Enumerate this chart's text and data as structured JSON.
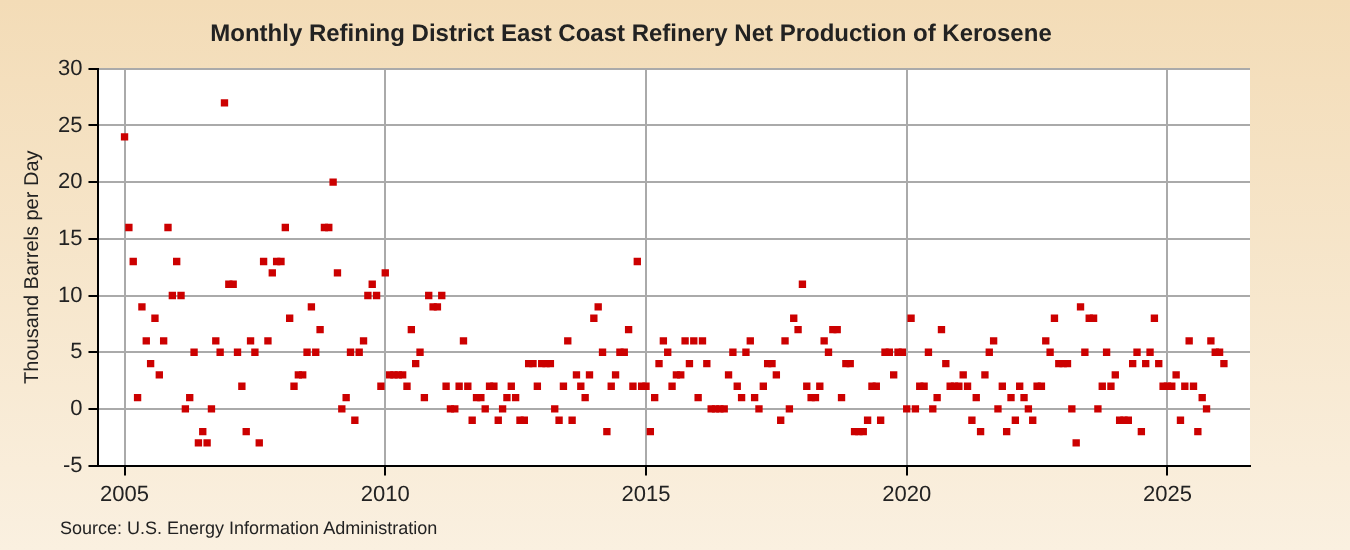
{
  "chart_data": {
    "type": "scatter",
    "title": "Monthly Refining District East Coast Refinery Net Production of Kerosene",
    "ylabel": "Thousand Barrels per Day",
    "annotations": [
      "Source: U.S. Energy Information Administration"
    ],
    "x": [
      "2005-01",
      "2005-02",
      "2005-03",
      "2005-04",
      "2005-05",
      "2005-06",
      "2005-07",
      "2005-08",
      "2005-09",
      "2005-10",
      "2005-11",
      "2005-12",
      "2006-01",
      "2006-02",
      "2006-03",
      "2006-04",
      "2006-05",
      "2006-06",
      "2006-07",
      "2006-08",
      "2006-09",
      "2006-10",
      "2006-11",
      "2006-12",
      "2007-01",
      "2007-02",
      "2007-03",
      "2007-04",
      "2007-05",
      "2007-06",
      "2007-07",
      "2007-08",
      "2007-09",
      "2007-10",
      "2007-11",
      "2007-12",
      "2008-01",
      "2008-02",
      "2008-03",
      "2008-04",
      "2008-05",
      "2008-06",
      "2008-07",
      "2008-08",
      "2008-09",
      "2008-10",
      "2008-11",
      "2008-12",
      "2009-01",
      "2009-02",
      "2009-03",
      "2009-04",
      "2009-05",
      "2009-06",
      "2009-07",
      "2009-08",
      "2009-09",
      "2009-10",
      "2009-11",
      "2009-12",
      "2010-01",
      "2010-02",
      "2010-03",
      "2010-04",
      "2010-05",
      "2010-06",
      "2010-07",
      "2010-08",
      "2010-09",
      "2010-10",
      "2010-11",
      "2010-12",
      "2011-01",
      "2011-02",
      "2011-03",
      "2011-04",
      "2011-05",
      "2011-06",
      "2011-07",
      "2011-08",
      "2011-09",
      "2011-10",
      "2011-11",
      "2011-12",
      "2012-01",
      "2012-02",
      "2012-03",
      "2012-04",
      "2012-05",
      "2012-06",
      "2012-07",
      "2012-08",
      "2012-09",
      "2012-10",
      "2012-11",
      "2012-12",
      "2013-01",
      "2013-02",
      "2013-03",
      "2013-04",
      "2013-05",
      "2013-06",
      "2013-07",
      "2013-08",
      "2013-09",
      "2013-10",
      "2013-11",
      "2013-12",
      "2014-01",
      "2014-02",
      "2014-03",
      "2014-04",
      "2014-05",
      "2014-06",
      "2014-07",
      "2014-08",
      "2014-09",
      "2014-10",
      "2014-11",
      "2014-12",
      "2015-01",
      "2015-02",
      "2015-03",
      "2015-04",
      "2015-05",
      "2015-06",
      "2015-07",
      "2015-08",
      "2015-09",
      "2015-10",
      "2015-11",
      "2015-12",
      "2016-01",
      "2016-02",
      "2016-03",
      "2016-04",
      "2016-05",
      "2016-06",
      "2016-07",
      "2016-08",
      "2016-09",
      "2016-10",
      "2016-11",
      "2016-12",
      "2017-01",
      "2017-02",
      "2017-03",
      "2017-04",
      "2017-05",
      "2017-06",
      "2017-07",
      "2017-08",
      "2017-09",
      "2017-10",
      "2017-11",
      "2017-12",
      "2018-01",
      "2018-02",
      "2018-03",
      "2018-04",
      "2018-05",
      "2018-06",
      "2018-07",
      "2018-08",
      "2018-09",
      "2018-10",
      "2018-11",
      "2018-12",
      "2019-01",
      "2019-02",
      "2019-03",
      "2019-04",
      "2019-05",
      "2019-06",
      "2019-07",
      "2019-08",
      "2019-09",
      "2019-10",
      "2019-11",
      "2019-12",
      "2020-01",
      "2020-02",
      "2020-03",
      "2020-04",
      "2020-05",
      "2020-06",
      "2020-07",
      "2020-08",
      "2020-09",
      "2020-10",
      "2020-11",
      "2020-12",
      "2021-01",
      "2021-02",
      "2021-03",
      "2021-04",
      "2021-05",
      "2021-06",
      "2021-07",
      "2021-08",
      "2021-09",
      "2021-10",
      "2021-11",
      "2021-12",
      "2022-01",
      "2022-02",
      "2022-03",
      "2022-04",
      "2022-05",
      "2022-06",
      "2022-07",
      "2022-08",
      "2022-09",
      "2022-10",
      "2022-11",
      "2022-12",
      "2023-01",
      "2023-02",
      "2023-03",
      "2023-04",
      "2023-05",
      "2023-06",
      "2023-07",
      "2023-08",
      "2023-09",
      "2023-10",
      "2023-11",
      "2023-12",
      "2024-01",
      "2024-02",
      "2024-03",
      "2024-04",
      "2024-05",
      "2024-06",
      "2024-07",
      "2024-08",
      "2024-09",
      "2024-10",
      "2024-11",
      "2024-12",
      "2025-01",
      "2025-02",
      "2025-03",
      "2025-04",
      "2025-05",
      "2025-06",
      "2025-07",
      "2025-08",
      "2025-09",
      "2025-10",
      "2025-11",
      "2025-12",
      "2026-01",
      "2026-02"
    ],
    "series": [
      {
        "color": "#cc0000",
        "values": [
          24,
          16,
          13,
          1,
          9,
          6,
          4,
          8,
          3,
          6,
          16,
          10,
          13,
          10,
          0,
          1,
          5,
          -3,
          -2,
          -3,
          0,
          6,
          5,
          27,
          11,
          11,
          5,
          2,
          -2,
          6,
          5,
          -3,
          13,
          6,
          12,
          13,
          13,
          16,
          8,
          2,
          3,
          3,
          5,
          9,
          5,
          7,
          16,
          16,
          20,
          12,
          0,
          1,
          5,
          -1,
          5,
          6,
          10,
          11,
          10,
          2,
          12,
          3,
          3,
          3,
          3,
          2,
          7,
          4,
          5,
          1,
          10,
          9,
          9,
          10,
          2,
          0,
          0,
          2,
          6,
          2,
          -1,
          1,
          1,
          0,
          2,
          2,
          -1,
          0,
          1,
          2,
          1,
          -1,
          -1,
          4,
          4,
          2,
          4,
          4,
          4,
          0,
          -1,
          2,
          6,
          -1,
          3,
          2,
          1,
          3,
          8,
          9,
          5,
          -2,
          2,
          3,
          5,
          5,
          7,
          2,
          13,
          2,
          2,
          -2,
          1,
          4,
          6,
          5,
          2,
          3,
          3,
          6,
          4,
          6,
          1,
          6,
          4,
          0,
          0,
          0,
          0,
          3,
          5,
          2,
          1,
          5,
          6,
          1,
          0,
          2,
          4,
          4,
          3,
          -1,
          6,
          0,
          8,
          7,
          11,
          2,
          1,
          1,
          2,
          6,
          5,
          7,
          7,
          1,
          4,
          4,
          -2,
          -2,
          -2,
          -1,
          2,
          2,
          -1,
          5,
          5,
          3,
          5,
          5,
          0,
          8,
          0,
          2,
          2,
          5,
          0,
          1,
          7,
          4,
          2,
          2,
          2,
          3,
          2,
          -1,
          1,
          -2,
          3,
          5,
          6,
          0,
          2,
          -2,
          1,
          -1,
          2,
          1,
          0,
          -1,
          2,
          2,
          6,
          5,
          8,
          4,
          4,
          4,
          0,
          -3,
          9,
          5,
          8,
          8,
          0,
          2,
          5,
          2,
          3,
          -1,
          -1,
          -1,
          4,
          5,
          -2,
          4,
          5,
          8,
          4,
          2,
          2,
          2,
          3,
          -1,
          2,
          6,
          2,
          -2,
          1,
          0,
          6,
          5,
          5,
          4
        ]
      }
    ],
    "xlim": [
      "2004-07",
      "2026-08"
    ],
    "xticks": [
      "2005",
      "2010",
      "2015",
      "2020",
      "2025"
    ],
    "ylim": [
      -5,
      30
    ],
    "yticks": [
      -5,
      0,
      5,
      10,
      15,
      20,
      25,
      30
    ],
    "grid": true,
    "marker": "square"
  }
}
